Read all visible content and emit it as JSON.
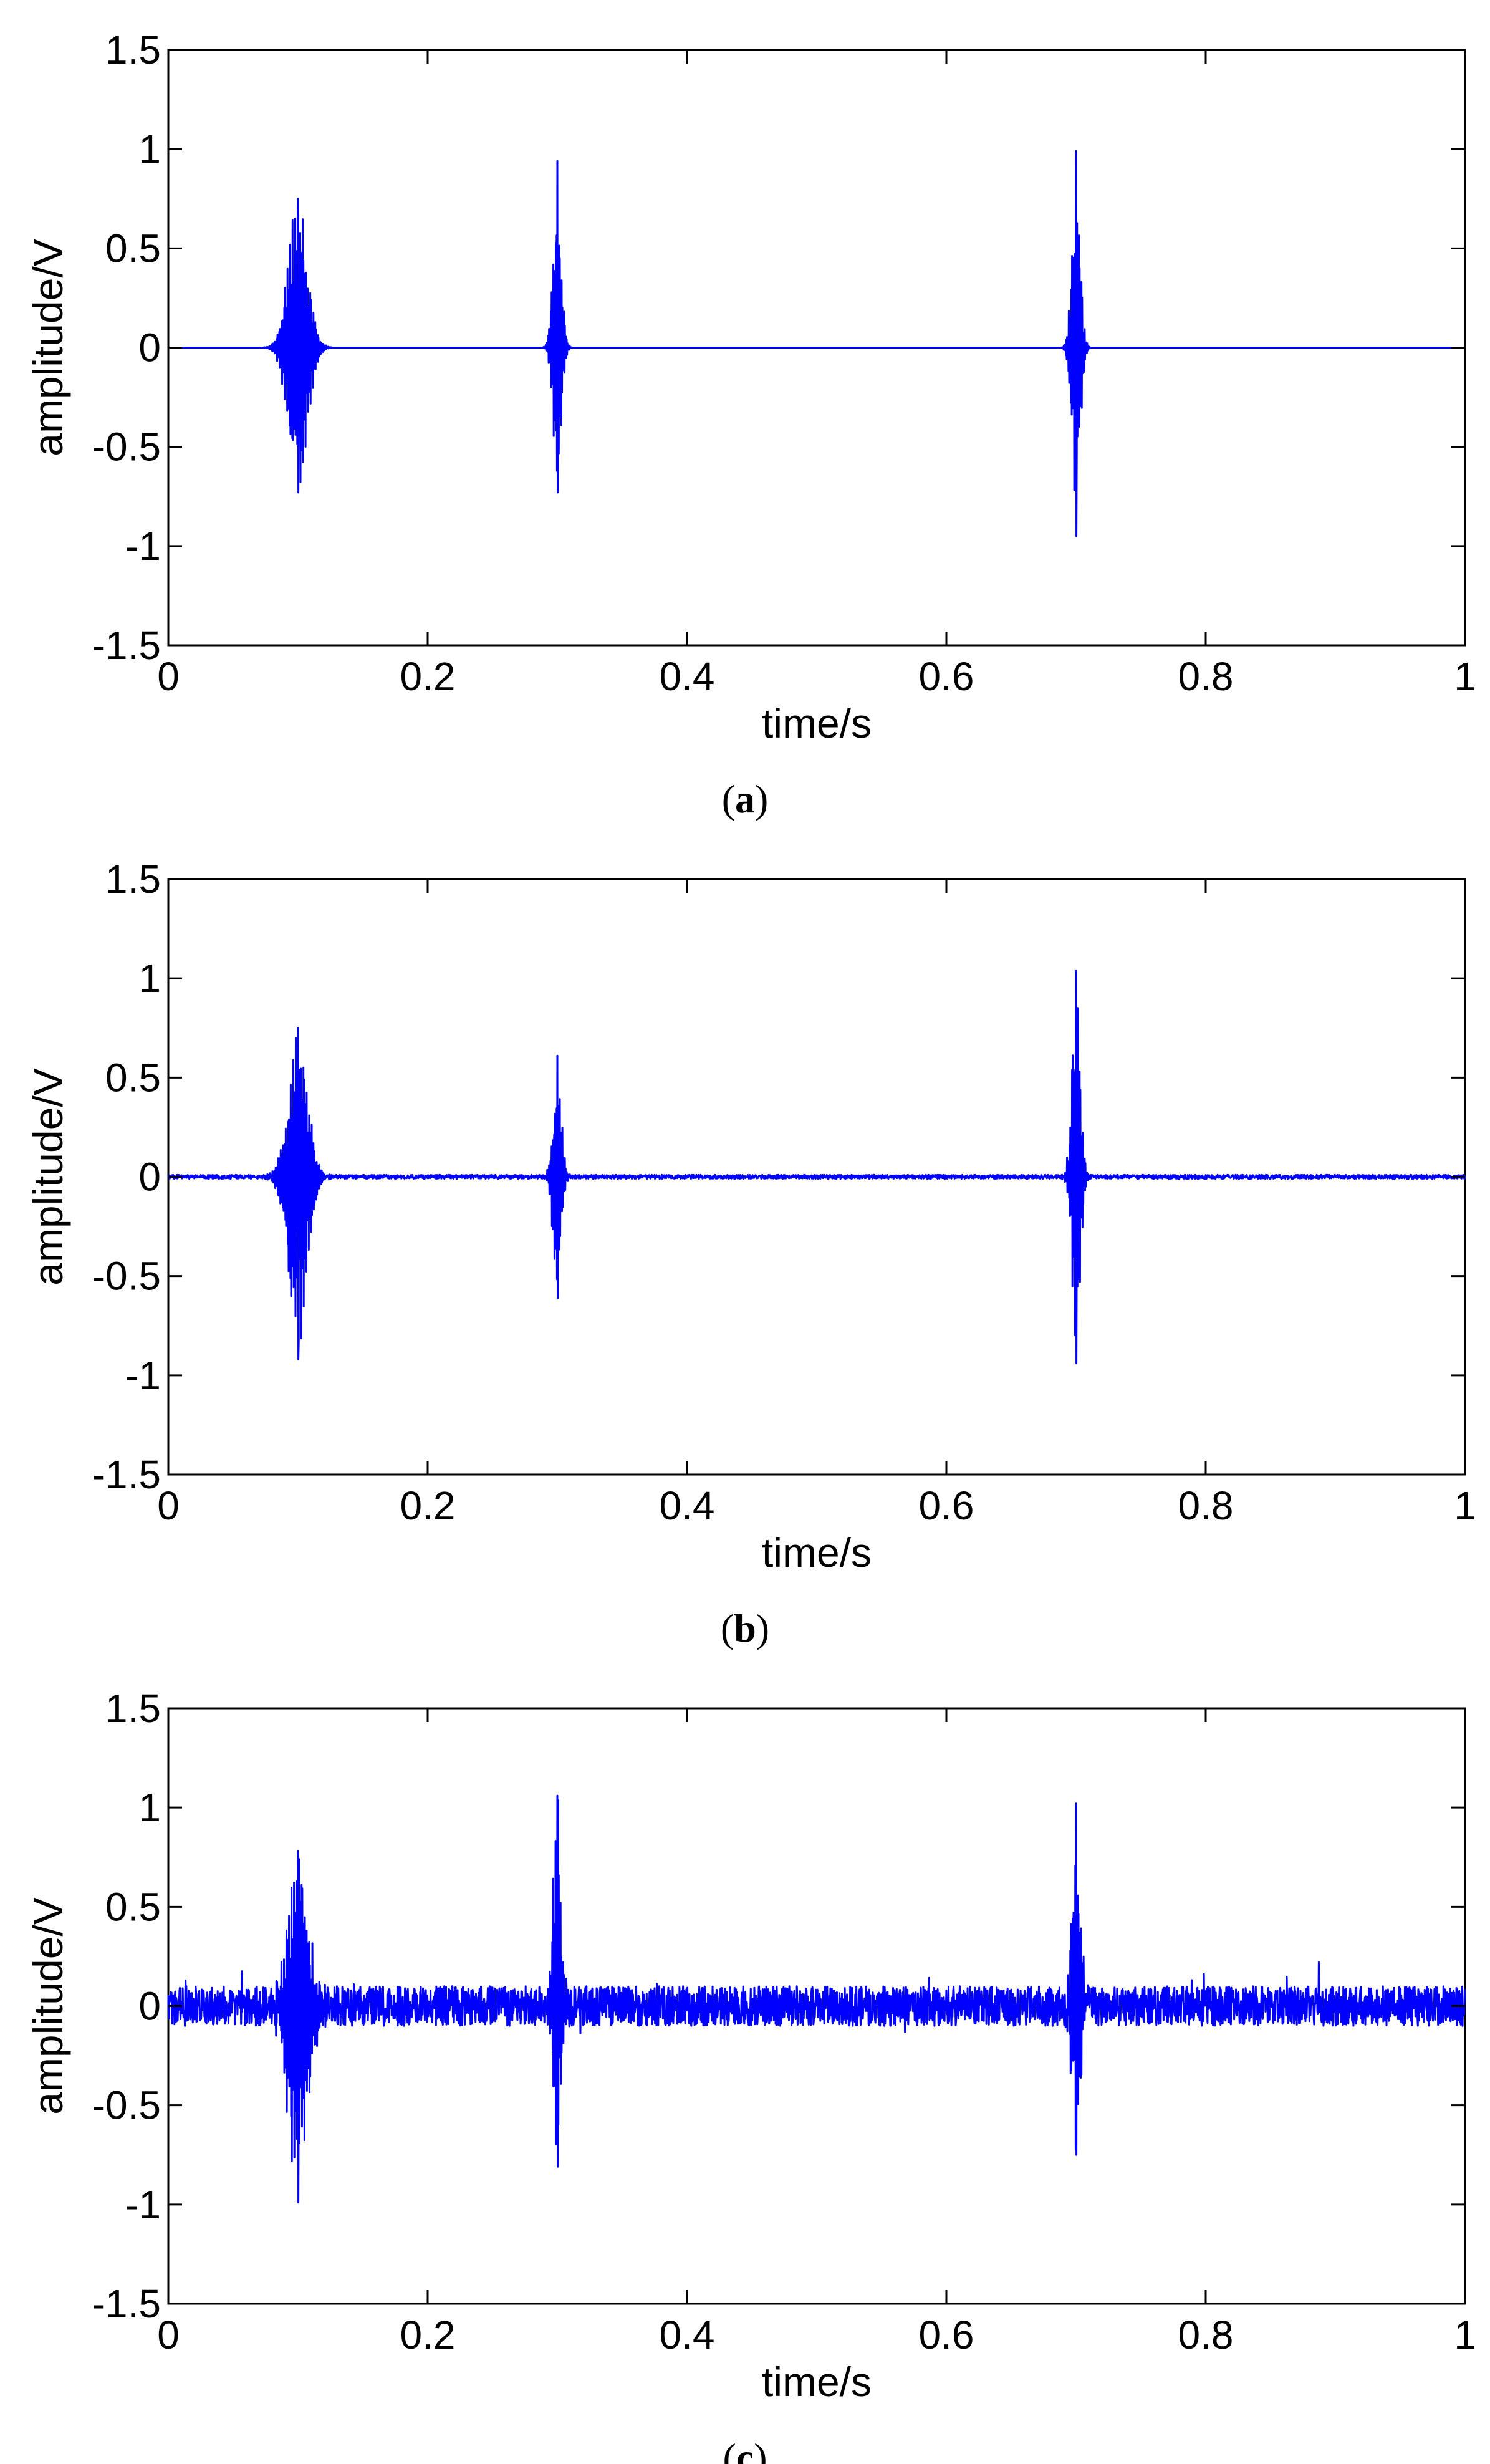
{
  "chart_data": [
    {
      "type": "line",
      "panel_label": "a",
      "xlabel": "time/s",
      "ylabel": "amplitude/V",
      "xlim": [
        0,
        1
      ],
      "ylim": [
        -1.5,
        1.5
      ],
      "x_ticks": [
        "0",
        "0.2",
        "0.4",
        "0.6",
        "0.8",
        "1"
      ],
      "y_ticks": [
        "1.5",
        "1",
        "0.5",
        "0",
        "-0.5",
        "-1",
        "-1.5"
      ],
      "grid": false,
      "line_color": "#0000ff",
      "noise_level": 0.0,
      "series": [
        {
          "bursts": [
            {
              "t": 0.1,
              "max": 0.75,
              "min": -0.73
            },
            {
              "t": 0.3,
              "max": 0.94,
              "min": -0.73
            },
            {
              "t": 0.7,
              "max": 0.99,
              "min": -0.95
            }
          ]
        }
      ]
    },
    {
      "type": "line",
      "panel_label": "b",
      "xlabel": "time/s",
      "ylabel": "amplitude/V",
      "xlim": [
        0,
        1
      ],
      "ylim": [
        -1.5,
        1.5
      ],
      "x_ticks": [
        "0",
        "0.2",
        "0.4",
        "0.6",
        "0.8",
        "1"
      ],
      "y_ticks": [
        "1.5",
        "1",
        "0.5",
        "0",
        "-0.5",
        "-1",
        "-1.5"
      ],
      "grid": false,
      "line_color": "#0000ff",
      "noise_level": 0.01,
      "series": [
        {
          "bursts": [
            {
              "t": 0.1,
              "max": 0.75,
              "min": -0.92
            },
            {
              "t": 0.3,
              "max": 0.61,
              "min": -0.61
            },
            {
              "t": 0.7,
              "max": 1.04,
              "min": -0.94
            }
          ]
        }
      ]
    },
    {
      "type": "line",
      "panel_label": "c",
      "xlabel": "time/s",
      "ylabel": "amplitude/V",
      "xlim": [
        0,
        1
      ],
      "ylim": [
        -1.5,
        1.5
      ],
      "x_ticks": [
        "0",
        "0.2",
        "0.4",
        "0.6",
        "0.8",
        "1"
      ],
      "y_ticks": [
        "1.5",
        "1",
        "0.5",
        "0",
        "-0.5",
        "-1",
        "-1.5"
      ],
      "grid": false,
      "line_color": "#0000ff",
      "noise_level": 0.1,
      "series": [
        {
          "bursts": [
            {
              "t": 0.1,
              "max": 0.78,
              "min": -0.99
            },
            {
              "t": 0.3,
              "max": 1.06,
              "min": -0.81
            },
            {
              "t": 0.7,
              "max": 1.02,
              "min": -0.75
            }
          ]
        }
      ]
    }
  ]
}
